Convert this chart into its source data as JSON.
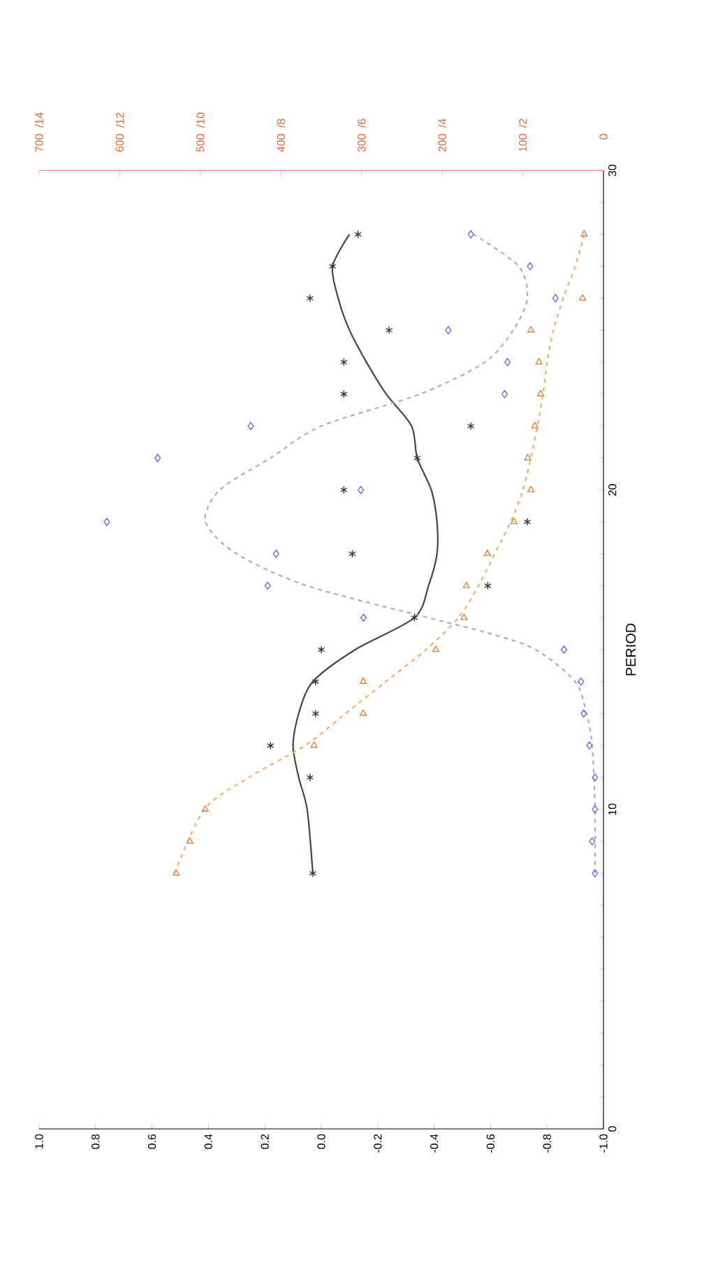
{
  "chart_data": {
    "type": "scatter",
    "ylabel": "PERIOD",
    "ylim": [
      0,
      30
    ],
    "yticks": [
      0,
      10,
      20,
      30
    ],
    "xlim": [
      1,
      -1
    ],
    "xticks": [
      {
        "value": 1,
        "label": "1.0"
      },
      0.8,
      0.6,
      0.4,
      0.2,
      {
        "value": 0,
        "label": "0.0"
      },
      -0.2,
      -0.4,
      -0.6,
      -0.8,
      {
        "value": -1,
        "label": "-1.0"
      }
    ],
    "x2lim": [
      700,
      0
    ],
    "x2ticks": [
      700,
      600,
      500,
      400,
      300,
      200,
      100,
      0
    ],
    "annotations": [
      "/14",
      "/12",
      "/10",
      "/8",
      "/6",
      "/4",
      "/2"
    ],
    "grid": false,
    "series": [
      {
        "type": "line",
        "color": "#3a4a40",
        "line_style": "solid",
        "marker": "none",
        "values": [
          8,
          10,
          11,
          12,
          13,
          14,
          15,
          16,
          17,
          18,
          19,
          20,
          21,
          22,
          23,
          24,
          25,
          26,
          27,
          28
        ],
        "x": [
          0.03,
          0.05,
          0.08,
          0.1,
          0.08,
          0.03,
          -0.12,
          -0.33,
          -0.38,
          -0.41,
          -0.41,
          -0.39,
          -0.34,
          -0.32,
          -0.23,
          -0.16,
          -0.1,
          -0.06,
          -0.04,
          -0.1
        ]
      },
      {
        "type": "line",
        "color": "#98aee6",
        "line_style": "dashed",
        "marker": "none",
        "values": [
          8,
          10,
          12,
          13,
          14,
          15,
          15.5,
          16,
          17,
          18,
          19,
          20,
          21,
          22,
          23,
          24,
          25,
          26,
          27,
          28
        ],
        "x": [
          -0.97,
          -0.97,
          -0.96,
          -0.94,
          -0.9,
          -0.76,
          -0.6,
          -0.38,
          0.05,
          0.3,
          0.41,
          0.36,
          0.18,
          0.0,
          -0.35,
          -0.58,
          -0.68,
          -0.73,
          -0.7,
          -0.54
        ]
      },
      {
        "type": "line",
        "axis": "x2",
        "color": "#f0b070",
        "line_style": "dashed",
        "marker": "none",
        "values": [
          8,
          10,
          11,
          12,
          13,
          14,
          15,
          16,
          17,
          18,
          19,
          20,
          21,
          22,
          23,
          24,
          25,
          26,
          27,
          28
        ],
        "x": [
          532,
          495,
          440,
          370,
          320,
          270,
          220,
          180,
          155,
          135,
          115,
          100,
          90,
          82,
          75,
          70,
          62,
          50,
          35,
          24
        ]
      },
      {
        "type": "scatter",
        "color": "#333333",
        "marker": "cross",
        "values": [
          8,
          11,
          12,
          13,
          14,
          15,
          16,
          17,
          18,
          19,
          20,
          21,
          22,
          23,
          24,
          25,
          26,
          27,
          28
        ],
        "x": [
          0.03,
          0.04,
          0.18,
          0.02,
          0.02,
          0.0,
          -0.33,
          -0.59,
          -0.11,
          -0.73,
          -0.08,
          -0.34,
          -0.53,
          -0.08,
          -0.08,
          -0.24,
          0.04,
          -0.04,
          -0.13
        ]
      },
      {
        "type": "scatter",
        "color": "#6a6ae0",
        "marker": "diamond",
        "values": [
          8,
          9,
          10,
          11,
          12,
          13,
          14,
          15,
          16,
          17,
          18,
          19,
          20,
          21,
          22,
          23,
          24,
          25,
          26,
          27,
          28
        ],
        "x": [
          -0.97,
          -0.96,
          -0.97,
          -0.97,
          -0.95,
          -0.93,
          -0.92,
          -0.86,
          -0.15,
          0.19,
          0.16,
          0.76,
          -0.14,
          0.58,
          0.25,
          -0.65,
          -0.66,
          -0.45,
          -0.83,
          -0.74,
          -0.53
        ]
      },
      {
        "type": "scatter",
        "axis": "x2",
        "color": "#e8823a",
        "marker": "triangle",
        "values": [
          8,
          9,
          10,
          12,
          13,
          14,
          15,
          16,
          17,
          18,
          19,
          20,
          21,
          22,
          23,
          24,
          25,
          26,
          28
        ],
        "x": [
          530,
          513,
          494,
          359,
          298,
          298,
          208,
          173,
          170,
          144,
          111,
          90,
          94,
          85,
          78,
          80,
          90,
          26,
          24
        ]
      }
    ]
  }
}
